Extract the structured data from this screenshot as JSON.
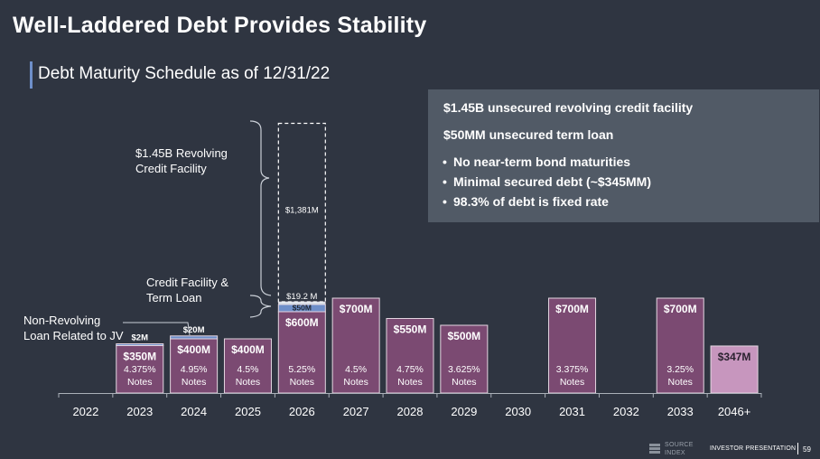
{
  "title": "Well-Laddered Debt Provides Stability",
  "subtitle": "Debt Maturity Schedule as of 12/31/22",
  "info_box": {
    "line1": "$1.45B unsecured revolving credit facility",
    "line2": "$50MM unsecured term loan",
    "bullets": [
      "No near-term bond maturities",
      "Minimal secured debt (~$345MM)",
      "98.3% of debt is fixed rate"
    ]
  },
  "annotations": {
    "revolving": [
      "$1.45B Revolving",
      "Credit Facility"
    ],
    "term_loan": [
      "Credit Facility &",
      "Term Loan"
    ],
    "jv_loan": [
      "Non-Revolving",
      "Loan Related to JV"
    ]
  },
  "footer": {
    "source_line1": "SOURCE",
    "source_line2": "INDEX",
    "presentation": "INVESTOR PRESENTATION",
    "page": "59"
  },
  "colors": {
    "notes": "#7b4a72",
    "notes_light": "#c796be",
    "credit": "#6e8fc9",
    "background": "#2f3541",
    "box": "#515a66"
  },
  "chart_data": {
    "type": "bar",
    "categories": [
      "2022",
      "2023",
      "2024",
      "2025",
      "2026",
      "2027",
      "2028",
      "2029",
      "2030",
      "2031",
      "2032",
      "2033",
      "2046+"
    ],
    "units": "$M",
    "series": [
      {
        "name": "Notes",
        "values": [
          0,
          350,
          400,
          400,
          600,
          700,
          550,
          500,
          0,
          700,
          0,
          700,
          347
        ],
        "labels": [
          "",
          "$350M",
          "$400M",
          "$400M",
          "$600M",
          "$700M",
          "$550M",
          "$500M",
          "",
          "$700M",
          "",
          "$700M",
          "$347M"
        ],
        "rates": [
          "",
          "4.375%",
          "4.95%",
          "4.5%",
          "5.25%",
          "4.5%",
          "4.75%",
          "3.625%",
          "",
          "3.375%",
          "",
          "3.25%",
          ""
        ],
        "rate_suffix": "Notes"
      },
      {
        "values": [
          0,
          2,
          20,
          0,
          50,
          0,
          0,
          0,
          0,
          0,
          0,
          0,
          0
        ],
        "labels": [
          "",
          "$2M",
          "$20M",
          "",
          "$50M",
          "",
          "",
          "",
          "",
          "",
          "",
          "",
          ""
        ]
      },
      {
        "values": [
          0,
          0,
          0,
          0,
          19.2,
          0,
          0,
          0,
          0,
          0,
          0,
          0,
          0
        ],
        "labels": [
          "",
          "",
          "",
          "",
          "$19.2 M",
          "",
          "",
          "",
          "",
          "",
          "",
          "",
          ""
        ]
      },
      {
        "values": [
          0,
          0,
          0,
          0,
          1381,
          0,
          0,
          0,
          0,
          0,
          0,
          0,
          0
        ],
        "labels": [
          "",
          "",
          "",
          "",
          "$1,381M",
          "",
          "",
          "",
          "",
          "",
          "",
          "",
          ""
        ]
      }
    ]
  }
}
